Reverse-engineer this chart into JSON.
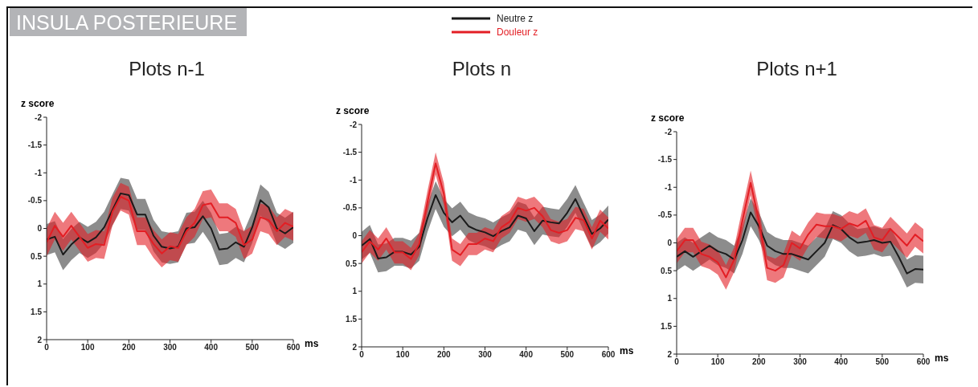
{
  "chart_data": [
    {
      "type": "other",
      "title": "INSULA  POSTERIEURE"
    },
    {
      "type": "line",
      "title": "Plots n-1",
      "xlabel": "ms",
      "ylabel": "z score",
      "xlim": [
        0,
        600
      ],
      "xticks": [
        0,
        100,
        200,
        300,
        400,
        500,
        600
      ],
      "ylim": [
        2,
        -2
      ],
      "yticks": [
        -2,
        -1.5,
        -1,
        -0.5,
        0,
        0.5,
        1,
        1.5,
        2
      ],
      "x": [
        0,
        20,
        40,
        60,
        80,
        100,
        120,
        140,
        160,
        180,
        200,
        220,
        240,
        260,
        280,
        300,
        320,
        340,
        360,
        380,
        400,
        420,
        440,
        460,
        480,
        500,
        520,
        540,
        560,
        580,
        600
      ],
      "series": [
        {
          "color": "#1a1a1a",
          "values": [
            0.2,
            0.15,
            0.47,
            0.29,
            0.16,
            0.25,
            0.16,
            -0.02,
            -0.33,
            -0.63,
            -0.6,
            -0.25,
            -0.25,
            0.13,
            0.33,
            0.36,
            0.33,
            0,
            -0.02,
            -0.22,
            0,
            0.38,
            0.36,
            0.25,
            0.33,
            -0.02,
            -0.51,
            -0.38,
            0,
            0.09,
            -0.02
          ],
          "lower": [
            -0.08,
            -0.13,
            0.19,
            0.01,
            -0.12,
            -0.03,
            -0.12,
            -0.3,
            -0.61,
            -0.91,
            -0.88,
            -0.53,
            -0.53,
            -0.15,
            0.05,
            0.08,
            0.05,
            -0.28,
            -0.3,
            -0.5,
            -0.28,
            0.1,
            0.08,
            -0.03,
            0.05,
            -0.3,
            -0.79,
            -0.66,
            -0.28,
            -0.19,
            -0.3
          ],
          "upper": [
            0.48,
            0.43,
            0.75,
            0.57,
            0.44,
            0.53,
            0.44,
            0.26,
            -0.05,
            -0.35,
            -0.32,
            0.03,
            0.03,
            0.41,
            0.61,
            0.64,
            0.61,
            0.28,
            0.26,
            0.06,
            0.28,
            0.66,
            0.64,
            0.53,
            0.61,
            0.26,
            -0.23,
            -0.1,
            0.28,
            0.37,
            0.26
          ]
        },
        {
          "color": "#e31e24",
          "values": [
            0.25,
            -0.05,
            0.15,
            -0.05,
            0.15,
            0.35,
            0.28,
            0.3,
            -0.3,
            -0.57,
            -0.5,
            0.05,
            0.05,
            0.28,
            0.45,
            0.32,
            0.35,
            0.05,
            -0.1,
            -0.42,
            -0.45,
            -0.2,
            -0.2,
            -0.1,
            0.3,
            0.2,
            -0.2,
            -0.15,
            0.05,
            -0.1,
            -0.03
          ],
          "lower": [
            0,
            -0.3,
            -0.1,
            -0.3,
            -0.1,
            0.1,
            0.03,
            0.05,
            -0.55,
            -0.82,
            -0.75,
            -0.2,
            -0.2,
            0.03,
            0.2,
            0.07,
            0.1,
            -0.2,
            -0.35,
            -0.67,
            -0.7,
            -0.45,
            -0.45,
            -0.35,
            0.05,
            -0.05,
            -0.45,
            -0.4,
            -0.2,
            -0.35,
            -0.28
          ],
          "upper": [
            0.5,
            0.2,
            0.4,
            0.2,
            0.4,
            0.6,
            0.53,
            0.55,
            -0.05,
            -0.32,
            -0.25,
            0.3,
            0.3,
            0.53,
            0.7,
            0.57,
            0.6,
            0.3,
            0.15,
            -0.17,
            -0.2,
            0.05,
            0.05,
            0.15,
            0.55,
            0.45,
            0.05,
            0.1,
            0.3,
            0.15,
            0.22
          ]
        }
      ]
    },
    {
      "type": "line",
      "title": "Plots n",
      "xlabel": "ms",
      "ylabel": "z score",
      "legend": "top",
      "xlim": [
        0,
        600
      ],
      "xticks": [
        0,
        100,
        200,
        300,
        400,
        500,
        600
      ],
      "ylim": [
        2,
        -2
      ],
      "yticks": [
        -2,
        -1.5,
        -1,
        -0.5,
        0,
        0.5,
        1,
        1.5,
        2
      ],
      "x": [
        0,
        20,
        40,
        60,
        80,
        100,
        120,
        140,
        160,
        180,
        200,
        220,
        240,
        260,
        280,
        300,
        320,
        340,
        360,
        380,
        400,
        420,
        440,
        460,
        480,
        500,
        520,
        540,
        560,
        580,
        600
      ],
      "series": [
        {
          "name": "Neutre z",
          "color": "#1a1a1a",
          "values": [
            0.18,
            0.06,
            0.41,
            0.39,
            0.29,
            0.29,
            0.34,
            0.2,
            -0.31,
            -0.73,
            -0.41,
            -0.24,
            -0.36,
            -0.17,
            -0.1,
            -0.06,
            0.01,
            -0.08,
            -0.15,
            -0.36,
            -0.31,
            -0.08,
            -0.27,
            -0.24,
            -0.22,
            -0.41,
            -0.66,
            -0.34,
            -0.03,
            -0.13,
            -0.29
          ],
          "lower": [
            -0.07,
            -0.19,
            0.16,
            0.14,
            0.04,
            0.04,
            0.09,
            -0.05,
            -0.56,
            -0.98,
            -0.66,
            -0.49,
            -0.61,
            -0.42,
            -0.35,
            -0.31,
            -0.24,
            -0.33,
            -0.4,
            -0.61,
            -0.56,
            -0.33,
            -0.52,
            -0.49,
            -0.47,
            -0.66,
            -0.91,
            -0.59,
            -0.28,
            -0.38,
            -0.54
          ],
          "upper": [
            0.43,
            0.31,
            0.66,
            0.64,
            0.54,
            0.54,
            0.59,
            0.45,
            -0.06,
            -0.48,
            -0.16,
            0.01,
            -0.11,
            0.08,
            0.15,
            0.19,
            0.26,
            0.17,
            0.1,
            -0.11,
            -0.06,
            0.17,
            -0.02,
            0.01,
            0.03,
            -0.16,
            -0.41,
            -0.09,
            0.22,
            0.12,
            -0.04
          ]
        },
        {
          "name": "Douleur z",
          "color": "#e31e24",
          "values": [
            0.3,
            0.1,
            0.25,
            0.05,
            0.3,
            0.3,
            0.42,
            0.15,
            -0.6,
            -1.3,
            -0.75,
            0.25,
            0.35,
            0.15,
            0.15,
            0.05,
            0.1,
            -0.15,
            -0.25,
            -0.5,
            -0.45,
            -0.5,
            -0.35,
            -0.1,
            -0.05,
            -0.1,
            -0.32,
            -0.28,
            0.05,
            -0.27,
            -0.13
          ],
          "lower": [
            0.1,
            -0.1,
            0.05,
            -0.15,
            0.1,
            0.1,
            0.22,
            -0.05,
            -0.8,
            -1.5,
            -0.95,
            0.05,
            0.15,
            -0.05,
            -0.05,
            -0.15,
            -0.1,
            -0.35,
            -0.45,
            -0.7,
            -0.65,
            -0.7,
            -0.55,
            -0.3,
            -0.25,
            -0.3,
            -0.52,
            -0.48,
            -0.15,
            -0.47,
            -0.33
          ],
          "upper": [
            0.5,
            0.3,
            0.45,
            0.25,
            0.5,
            0.5,
            0.62,
            0.35,
            -0.4,
            -1.1,
            -0.55,
            0.45,
            0.55,
            0.35,
            0.35,
            0.25,
            0.3,
            0.05,
            -0.05,
            -0.3,
            -0.25,
            -0.3,
            -0.15,
            0.1,
            0.15,
            0.1,
            -0.12,
            -0.08,
            0.25,
            -0.07,
            0.07
          ]
        }
      ]
    },
    {
      "type": "line",
      "title": "Plots n+1",
      "xlabel": "ms",
      "ylabel": "z score",
      "xlim": [
        0,
        600
      ],
      "xticks": [
        0,
        100,
        200,
        300,
        400,
        500,
        600
      ],
      "ylim": [
        2,
        -2
      ],
      "yticks": [
        -2,
        -1.5,
        -1,
        -0.5,
        0,
        0.5,
        1,
        1.5,
        2
      ],
      "x": [
        0,
        20,
        40,
        60,
        80,
        100,
        120,
        140,
        160,
        180,
        200,
        220,
        240,
        260,
        280,
        300,
        320,
        340,
        360,
        380,
        400,
        420,
        440,
        460,
        480,
        500,
        520,
        540,
        560,
        580,
        600
      ],
      "series": [
        {
          "color": "#1a1a1a",
          "values": [
            0.25,
            0.15,
            0.25,
            0.15,
            0.05,
            0.15,
            0.2,
            0.3,
            -0.05,
            -0.55,
            -0.3,
            0.05,
            0.15,
            0.2,
            0.2,
            0.25,
            0.3,
            0.15,
            0,
            -0.32,
            -0.25,
            -0.1,
            0,
            -0.02,
            -0.05,
            0,
            -0.02,
            0.25,
            0.55,
            0.47,
            0.48
          ],
          "lower": [
            0,
            -0.1,
            0,
            -0.1,
            -0.2,
            -0.1,
            -0.05,
            0.05,
            -0.3,
            -0.8,
            -0.55,
            -0.2,
            -0.1,
            -0.05,
            -0.05,
            0,
            0.05,
            -0.1,
            -0.25,
            -0.57,
            -0.5,
            -0.35,
            -0.25,
            -0.27,
            -0.3,
            -0.25,
            -0.27,
            0,
            0.3,
            0.22,
            0.23
          ],
          "upper": [
            0.5,
            0.4,
            0.5,
            0.4,
            0.3,
            0.4,
            0.45,
            0.55,
            0.2,
            -0.3,
            -0.05,
            0.3,
            0.4,
            0.45,
            0.45,
            0.5,
            0.55,
            0.4,
            0.25,
            -0.07,
            0,
            0.15,
            0.25,
            0.23,
            0.2,
            0.25,
            0.23,
            0.5,
            0.8,
            0.72,
            0.73
          ]
        },
        {
          "color": "#e31e24",
          "values": [
            0.15,
            -0.05,
            -0.05,
            0.2,
            0.25,
            0.35,
            0.62,
            0.3,
            -0.4,
            -1.08,
            -0.4,
            0.45,
            0.5,
            0.4,
            0,
            0.1,
            -0.15,
            -0.33,
            -0.3,
            -0.3,
            -0.25,
            -0.35,
            -0.3,
            -0.4,
            -0.1,
            -0.05,
            -0.25,
            -0.1,
            0.05,
            -0.15,
            -0.03
          ],
          "lower": [
            -0.07,
            -0.27,
            -0.27,
            -0.02,
            0.03,
            0.13,
            0.4,
            0.08,
            -0.62,
            -1.3,
            -0.62,
            0.23,
            0.28,
            0.18,
            -0.22,
            -0.12,
            -0.37,
            -0.55,
            -0.52,
            -0.52,
            -0.47,
            -0.57,
            -0.52,
            -0.62,
            -0.32,
            -0.27,
            -0.47,
            -0.32,
            -0.17,
            -0.37,
            -0.25
          ],
          "upper": [
            0.37,
            0.17,
            0.17,
            0.42,
            0.47,
            0.57,
            0.84,
            0.52,
            -0.18,
            -0.86,
            -0.18,
            0.67,
            0.72,
            0.62,
            0.22,
            0.32,
            0.07,
            -0.11,
            -0.08,
            -0.08,
            -0.03,
            -0.13,
            -0.08,
            -0.18,
            0.12,
            0.17,
            -0.03,
            0.12,
            0.27,
            0.07,
            0.19
          ]
        }
      ]
    }
  ]
}
